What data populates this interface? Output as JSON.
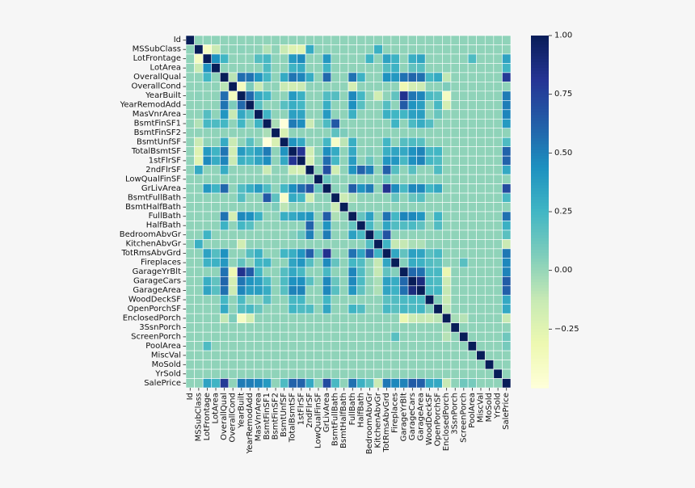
{
  "chart_data": {
    "type": "heatmap",
    "title": "",
    "xlabel": "",
    "ylabel": "",
    "labels": [
      "Id",
      "MSSubClass",
      "LotFrontage",
      "LotArea",
      "OverallQual",
      "OverallCond",
      "YearBuilt",
      "YearRemodAdd",
      "MasVnrArea",
      "BsmtFinSF1",
      "BsmtFinSF2",
      "BsmtUnfSF",
      "TotalBsmtSF",
      "1stFlrSF",
      "2ndFlrSF",
      "LowQualFinSF",
      "GrLivArea",
      "BsmtFullBath",
      "BsmtHalfBath",
      "FullBath",
      "HalfBath",
      "BedroomAbvGr",
      "KitchenAbvGr",
      "TotRmsAbvGrd",
      "Fireplaces",
      "GarageYrBlt",
      "GarageCars",
      "GarageArea",
      "WoodDeckSF",
      "OpenPorchSF",
      "EnclosedPorch",
      "3SsnPorch",
      "ScreenPorch",
      "PoolArea",
      "MiscVal",
      "MoSold",
      "YrSold",
      "SalePrice"
    ],
    "colorbar": {
      "min": -0.5,
      "max": 1.0,
      "ticks": [
        1.0,
        0.75,
        0.5,
        0.25,
        0.0,
        -0.25
      ],
      "tick_labels": [
        "1.00",
        "0.75",
        "0.50",
        "0.25",
        "0.00",
        "−0.25"
      ],
      "colormap": "YlGnBu"
    },
    "correlations": {
      "MSSubClass|LotFrontage": -0.39,
      "MSSubClass|LotArea": -0.14,
      "MSSubClass|BsmtFinSF1": -0.07,
      "MSSubClass|BsmtUnfSF": -0.14,
      "MSSubClass|TotalBsmtSF": -0.24,
      "MSSubClass|1stFlrSF": -0.25,
      "MSSubClass|2ndFlrSF": 0.31,
      "MSSubClass|KitchenAbvGr": 0.28,
      "MSSubClass|YearBuilt": 0.03,
      "LotFrontage|LotArea": 0.43,
      "LotFrontage|OverallQual": 0.25,
      "LotFrontage|MasVnrArea": 0.19,
      "LotFrontage|BsmtFinSF1": 0.23,
      "LotFrontage|TotalBsmtSF": 0.39,
      "LotFrontage|1stFlrSF": 0.46,
      "LotFrontage|GrLivArea": 0.4,
      "LotFrontage|TotRmsAbvGrd": 0.35,
      "LotFrontage|Fireplaces": 0.27,
      "LotFrontage|GarageCars": 0.29,
      "LotFrontage|GarageArea": 0.34,
      "LotFrontage|PoolArea": 0.21,
      "LotFrontage|SalePrice": 0.35,
      "LotFrontage|BedroomAbvGr": 0.26,
      "LotArea|BsmtFinSF1": 0.21,
      "LotArea|TotalBsmtSF": 0.26,
      "LotArea|1stFlrSF": 0.3,
      "LotArea|GrLivArea": 0.26,
      "LotArea|Fireplaces": 0.27,
      "LotArea|TotRmsAbvGrd": 0.19,
      "LotArea|SalePrice": 0.26,
      "LotArea|GarageArea": 0.18,
      "LotArea|GarageCars": 0.15,
      "OverallQual|YearBuilt": 0.57,
      "OverallQual|YearRemodAdd": 0.55,
      "OverallQual|MasVnrArea": 0.41,
      "OverallQual|BsmtFinSF1": 0.24,
      "OverallQual|BsmtUnfSF": 0.31,
      "OverallQual|TotalBsmtSF": 0.54,
      "OverallQual|1stFlrSF": 0.48,
      "OverallQual|2ndFlrSF": 0.3,
      "OverallQual|GrLivArea": 0.59,
      "OverallQual|FullBath": 0.55,
      "OverallQual|HalfBath": 0.27,
      "OverallQual|TotRmsAbvGrd": 0.43,
      "OverallQual|Fireplaces": 0.4,
      "OverallQual|GarageYrBlt": 0.55,
      "OverallQual|GarageCars": 0.6,
      "OverallQual|GarageArea": 0.56,
      "OverallQual|WoodDeckSF": 0.24,
      "OverallQual|OpenPorchSF": 0.31,
      "OverallQual|SalePrice": 0.79,
      "OverallQual|EnclosedPorch": -0.11,
      "OverallQual|OverallCond": -0.09,
      "OverallCond|YearBuilt": -0.38,
      "OverallCond|YearRemodAdd": 0.07,
      "OverallCond|GarageYrBlt": -0.32,
      "OverallCond|EnclosedPorch": 0.07,
      "OverallCond|MasVnrArea": -0.13,
      "OverallCond|BsmtUnfSF": -0.14,
      "OverallCond|FullBath": -0.19,
      "OverallCond|GarageCars": -0.19,
      "OverallCond|GarageArea": -0.15,
      "OverallCond|TotalBsmtSF": -0.17,
      "OverallCond|1stFlrSF": -0.14,
      "YearBuilt|YearRemodAdd": 0.59,
      "YearBuilt|MasVnrArea": 0.32,
      "YearBuilt|BsmtFinSF1": 0.25,
      "YearBuilt|TotalBsmtSF": 0.39,
      "YearBuilt|1stFlrSF": 0.28,
      "YearBuilt|GrLivArea": 0.2,
      "YearBuilt|BsmtFullBath": 0.19,
      "YearBuilt|FullBath": 0.47,
      "YearBuilt|HalfBath": 0.24,
      "YearBuilt|Fireplaces": 0.15,
      "YearBuilt|GarageYrBlt": 0.83,
      "YearBuilt|GarageCars": 0.54,
      "YearBuilt|GarageArea": 0.48,
      "YearBuilt|WoodDeckSF": 0.22,
      "YearBuilt|OpenPorchSF": 0.19,
      "YearBuilt|EnclosedPorch": -0.39,
      "YearBuilt|SalePrice": 0.52,
      "YearBuilt|KitchenAbvGr": -0.17,
      "YearRemodAdd|MasVnrArea": 0.18,
      "YearRemodAdd|TotalBsmtSF": 0.29,
      "YearRemodAdd|1stFlrSF": 0.24,
      "YearRemodAdd|GrLivArea": 0.29,
      "YearRemodAdd|FullBath": 0.44,
      "YearRemodAdd|TotRmsAbvGrd": 0.19,
      "YearRemodAdd|GarageYrBlt": 0.64,
      "YearRemodAdd|GarageCars": 0.42,
      "YearRemodAdd|GarageArea": 0.37,
      "YearRemodAdd|OpenPorchSF": 0.23,
      "YearRemodAdd|SalePrice": 0.51,
      "YearRemodAdd|EnclosedPorch": -0.19,
      "YearRemodAdd|BsmtUnfSF": 0.18,
      "YearRemodAdd|HalfBath": 0.18,
      "MasVnrArea|BsmtFinSF1": 0.26,
      "MasVnrArea|TotalBsmtSF": 0.36,
      "MasVnrArea|1stFlrSF": 0.34,
      "MasVnrArea|GrLivArea": 0.39,
      "MasVnrArea|FullBath": 0.28,
      "MasVnrArea|TotRmsAbvGrd": 0.28,
      "MasVnrArea|Fireplaces": 0.25,
      "MasVnrArea|GarageYrBlt": 0.25,
      "MasVnrArea|GarageCars": 0.36,
      "MasVnrArea|GarageArea": 0.37,
      "MasVnrArea|SalePrice": 0.48,
      "MasVnrArea|OpenPorchSF": 0.13,
      "BsmtFinSF1|BsmtFinSF2": -0.05,
      "BsmtFinSF1|BsmtUnfSF": -0.5,
      "BsmtFinSF1|TotalBsmtSF": 0.52,
      "BsmtFinSF1|1stFlrSF": 0.45,
      "BsmtFinSF1|BsmtFullBath": 0.65,
      "BsmtFinSF1|GrLivArea": 0.21,
      "BsmtFinSF1|Fireplaces": 0.26,
      "BsmtFinSF1|GarageCars": 0.22,
      "BsmtFinSF1|GarageArea": 0.3,
      "BsmtFinSF1|WoodDeckSF": 0.2,
      "BsmtFinSF1|SalePrice": 0.39,
      "BsmtFinSF1|2ndFlrSF": -0.14,
      "BsmtFinSF2|BsmtUnfSF": -0.21,
      "BsmtFinSF2|BsmtHalfBath": 0.07,
      "BsmtFinSF2|BsmtFullBath": 0.16,
      "BsmtUnfSF|TotalBsmtSF": 0.42,
      "BsmtUnfSF|1stFlrSF": 0.32,
      "BsmtUnfSF|BsmtFullBath": -0.42,
      "BsmtUnfSF|GrLivArea": 0.24,
      "BsmtUnfSF|FullBath": 0.29,
      "BsmtUnfSF|TotRmsAbvGrd": 0.25,
      "BsmtUnfSF|GarageYrBlt": 0.19,
      "BsmtUnfSF|GarageCars": 0.21,
      "BsmtUnfSF|GarageArea": 0.18,
      "BsmtUnfSF|SalePrice": 0.21,
      "BsmtUnfSF|BsmtHalfBath": -0.1,
      "TotalBsmtSF|1stFlrSF": 0.82,
      "TotalBsmtSF|2ndFlrSF": -0.17,
      "TotalBsmtSF|GrLivArea": 0.45,
      "TotalBsmtSF|BsmtFullBath": 0.31,
      "TotalBsmtSF|FullBath": 0.32,
      "TotalBsmtSF|TotRmsAbvGrd": 0.29,
      "TotalBsmtSF|Fireplaces": 0.34,
      "TotalBsmtSF|GarageYrBlt": 0.32,
      "TotalBsmtSF|GarageCars": 0.43,
      "TotalBsmtSF|GarageArea": 0.49,
      "TotalBsmtSF|WoodDeckSF": 0.23,
      "TotalBsmtSF|OpenPorchSF": 0.25,
      "TotalBsmtSF|SalePrice": 0.61,
      "TotalBsmtSF|BedroomAbvGr": 0.05,
      "1stFlrSF|2ndFlrSF": -0.2,
      "1stFlrSF|GrLivArea": 0.57,
      "1stFlrSF|BsmtFullBath": 0.24,
      "1stFlrSF|FullBath": 0.38,
      "1stFlrSF|BedroomAbvGr": 0.13,
      "1stFlrSF|TotRmsAbvGrd": 0.41,
      "1stFlrSF|Fireplaces": 0.41,
      "1stFlrSF|GarageYrBlt": 0.23,
      "1stFlrSF|GarageCars": 0.44,
      "1stFlrSF|GarageArea": 0.49,
      "1stFlrSF|WoodDeckSF": 0.24,
      "1stFlrSF|OpenPorchSF": 0.21,
      "1stFlrSF|SalePrice": 0.61,
      "2ndFlrSF|GrLivArea": 0.69,
      "2ndFlrSF|FullBath": 0.42,
      "2ndFlrSF|HalfBath": 0.61,
      "2ndFlrSF|BedroomAbvGr": 0.5,
      "2ndFlrSF|TotRmsAbvGrd": 0.62,
      "2ndFlrSF|Fireplaces": 0.19,
      "2ndFlrSF|GarageCars": 0.18,
      "2ndFlrSF|OpenPorchSF": 0.21,
      "2ndFlrSF|SalePrice": 0.32,
      "2ndFlrSF|BsmtFullBath": -0.17,
      "LowQualFinSF|GrLivArea": 0.13,
      "LowQualFinSF|TotRmsAbvGrd": 0.13,
      "GrLivArea|BsmtFullBath": 0.03,
      "GrLivArea|FullBath": 0.63,
      "GrLivArea|HalfBath": 0.42,
      "GrLivArea|BedroomAbvGr": 0.52,
      "GrLivArea|TotRmsAbvGrd": 0.83,
      "GrLivArea|Fireplaces": 0.46,
      "GrLivArea|GarageYrBlt": 0.23,
      "GrLivArea|GarageCars": 0.47,
      "GrLivArea|GarageArea": 0.47,
      "GrLivArea|WoodDeckSF": 0.25,
      "GrLivArea|OpenPorchSF": 0.33,
      "GrLivArea|SalePrice": 0.71,
      "BsmtFullBath|BsmtHalfBath": -0.15,
      "BsmtFullBath|FullBath": -0.06,
      "BsmtFullBath|Fireplaces": 0.14,
      "BsmtFullBath|GarageCars": 0.13,
      "BsmtFullBath|GarageArea": 0.18,
      "BsmtFullBath|SalePrice": 0.23,
      "FullBath|HalfBath": 0.14,
      "FullBath|BedroomAbvGr": 0.36,
      "FullBath|TotRmsAbvGrd": 0.55,
      "FullBath|Fireplaces": 0.24,
      "FullBath|GarageYrBlt": 0.48,
      "FullBath|GarageCars": 0.47,
      "FullBath|GarageArea": 0.41,
      "FullBath|OpenPorchSF": 0.26,
      "FullBath|SalePrice": 0.56,
      "HalfBath|BedroomAbvGr": 0.23,
      "HalfBath|TotRmsAbvGrd": 0.34,
      "HalfBath|Fireplaces": 0.2,
      "HalfBath|GarageYrBlt": 0.2,
      "HalfBath|GarageCars": 0.22,
      "HalfBath|GarageArea": 0.16,
      "HalfBath|SalePrice": 0.28,
      "HalfBath|OpenPorchSF": 0.2,
      "BedroomAbvGr|KitchenAbvGr": 0.2,
      "BedroomAbvGr|TotRmsAbvGrd": 0.68,
      "BedroomAbvGr|SalePrice": 0.17,
      "KitchenAbvGr|TotRmsAbvGrd": 0.26,
      "KitchenAbvGr|SalePrice": -0.14,
      "KitchenAbvGr|Fireplaces": -0.12,
      "KitchenAbvGr|GarageYrBlt": -0.12,
      "KitchenAbvGr|GarageCars": -0.05,
      "KitchenAbvGr|GarageArea": -0.06,
      "TotRmsAbvGrd|Fireplaces": 0.33,
      "TotRmsAbvGrd|GarageYrBlt": 0.15,
      "TotRmsAbvGrd|GarageCars": 0.36,
      "TotRmsAbvGrd|GarageArea": 0.34,
      "TotRmsAbvGrd|WoodDeckSF": 0.17,
      "TotRmsAbvGrd|OpenPorchSF": 0.23,
      "TotRmsAbvGrd|SalePrice": 0.53,
      "Fireplaces|GarageYrBlt": 0.05,
      "Fireplaces|GarageCars": 0.3,
      "Fireplaces|GarageArea": 0.27,
      "Fireplaces|WoodDeckSF": 0.2,
      "Fireplaces|OpenPorchSF": 0.17,
      "Fireplaces|SalePrice": 0.47,
      "Fireplaces|ScreenPorch": 0.18,
      "GarageYrBlt|GarageCars": 0.59,
      "GarageYrBlt|GarageArea": 0.56,
      "GarageYrBlt|WoodDeckSF": 0.22,
      "GarageYrBlt|OpenPorchSF": 0.23,
      "GarageYrBlt|EnclosedPorch": -0.3,
      "GarageYrBlt|SalePrice": 0.49,
      "GarageCars|GarageArea": 0.88,
      "GarageCars|WoodDeckSF": 0.23,
      "GarageCars|OpenPorchSF": 0.21,
      "GarageCars|EnclosedPorch": -0.15,
      "GarageCars|SalePrice": 0.64,
      "GarageArea|WoodDeckSF": 0.22,
      "GarageArea|OpenPorchSF": 0.24,
      "GarageArea|EnclosedPorch": -0.12,
      "GarageArea|SalePrice": 0.62,
      "WoodDeckSF|OpenPorchSF": 0.06,
      "WoodDeckSF|EnclosedPorch": -0.13,
      "WoodDeckSF|SalePrice": 0.32,
      "OpenPorchSF|EnclosedPorch": -0.09,
      "OpenPorchSF|SalePrice": 0.32,
      "EnclosedPorch|SalePrice": -0.13,
      "EnclosedPorch|3SsnPorch": -0.04,
      "EnclosedPorch|ScreenPorch": -0.08,
      "ScreenPorch|SalePrice": 0.11,
      "PoolArea|SalePrice": 0.09
    }
  }
}
